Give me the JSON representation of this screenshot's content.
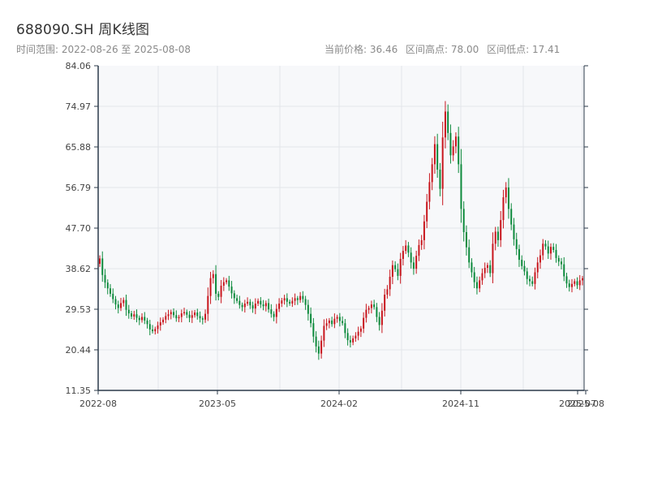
{
  "header": {
    "title": "688090.SH 周K线图",
    "subtitle": "时间范围: 2022-08-26 至 2025-08-08",
    "current_price": "当前价格: 36.46",
    "range_high": "区间高点: 78.00",
    "range_low": "区间低点: 17.41"
  },
  "colors": {
    "up": "#c8161d",
    "down": "#0d8a3c",
    "plot_bg": "#f7f8fa",
    "grid": "#e3e6ea",
    "axis": "#2b3a4a"
  },
  "chart_data": {
    "type": "candlestick",
    "x_tick_labels": [
      "2022-08",
      "2023-05",
      "2024-02",
      "2024-11",
      "2025-07",
      "2025-08"
    ],
    "y_tick_labels": [
      "11.35",
      "20.44",
      "29.53",
      "38.62",
      "47.70",
      "56.79",
      "65.88",
      "74.97",
      "84.06"
    ],
    "ylim": [
      11.35,
      84.06
    ],
    "grid": true,
    "weekly_close": [
      40.9,
      37.2,
      35.5,
      34.2,
      33.0,
      31.8,
      30.6,
      29.8,
      30.9,
      31.6,
      29.4,
      28.6,
      27.9,
      28.4,
      27.6,
      27.1,
      27.8,
      27.0,
      26.2,
      25.0,
      24.6,
      25.1,
      25.9,
      26.6,
      27.2,
      28.0,
      28.4,
      28.9,
      28.2,
      27.5,
      27.8,
      28.6,
      28.9,
      28.3,
      27.6,
      28.2,
      28.8,
      28.0,
      27.5,
      27.2,
      28.5,
      32.5,
      36.5,
      37.4,
      33.0,
      32.3,
      34.8,
      35.6,
      36.0,
      34.6,
      33.1,
      32.0,
      31.4,
      30.5,
      30.0,
      30.8,
      31.2,
      30.4,
      29.7,
      30.8,
      31.4,
      30.6,
      30.2,
      30.9,
      29.5,
      28.5,
      27.8,
      29.6,
      30.8,
      31.5,
      32.0,
      31.2,
      30.8,
      31.4,
      32.0,
      31.6,
      32.5,
      31.8,
      30.5,
      28.5,
      26.4,
      23.4,
      21.2,
      19.6,
      22.5,
      25.8,
      26.4,
      27.0,
      26.2,
      27.4,
      27.8,
      26.9,
      26.4,
      24.2,
      22.6,
      22.1,
      23.0,
      23.6,
      24.5,
      25.2,
      27.6,
      29.4,
      29.8,
      30.6,
      30.0,
      27.8,
      26.0,
      29.2,
      32.8,
      34.0,
      36.8,
      39.4,
      38.5,
      37.0,
      40.8,
      42.6,
      43.8,
      42.2,
      40.0,
      38.6,
      41.5,
      43.9,
      45.0,
      49.2,
      53.6,
      58.0,
      62.0,
      66.5,
      60.8,
      56.5,
      68.0,
      73.8,
      69.0,
      64.0,
      66.0,
      68.2,
      62.0,
      52.0,
      46.8,
      43.4,
      40.0,
      37.8,
      35.6,
      34.2,
      36.0,
      37.6,
      38.8,
      39.4,
      37.6,
      44.2,
      46.9,
      45.0,
      49.5,
      54.6,
      56.8,
      52.0,
      48.5,
      45.2,
      43.0,
      40.6,
      39.2,
      38.0,
      36.3,
      35.8,
      35.2,
      37.8,
      40.0,
      41.6,
      44.2,
      43.6,
      42.0,
      43.5,
      42.8,
      41.0,
      40.2,
      39.6,
      36.9,
      35.3,
      34.5,
      35.2,
      35.8,
      34.9,
      36.0,
      36.46
    ]
  }
}
